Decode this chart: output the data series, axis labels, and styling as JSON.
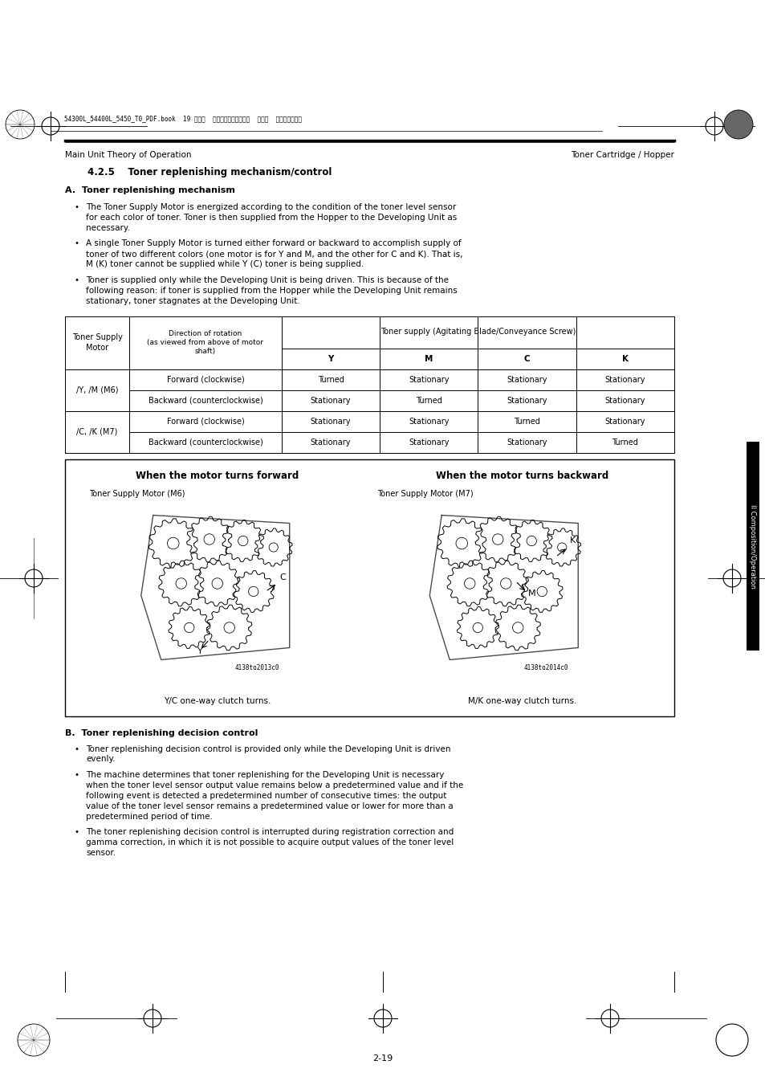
{
  "bg_color": "#ffffff",
  "page_width": 9.54,
  "page_height": 13.51,
  "header_left": "Main Unit Theory of Operation",
  "header_right": "Toner Cartridge / Hopper",
  "section_title": "4.2.5    Toner replenishing mechanism/control",
  "sub_title_A": "A.  Toner replenishing mechanism",
  "bullets_A": [
    "The Toner Supply Motor is energized according to the condition of the toner level sensor\nfor each color of toner. Toner is then supplied from the Hopper to the Developing Unit as\nnecessary.",
    "A single Toner Supply Motor is turned either forward or backward to accomplish supply of\ntoner of two different colors (one motor is for Y and M, and the other for C and K). That is,\nM (K) toner cannot be supplied while Y (C) toner is being supplied.",
    "Toner is supplied only while the Developing Unit is being driven. This is because of the\nfollowing reason: if toner is supplied from the Hopper while the Developing Unit remains\nstationary, toner stagnates at the Developing Unit."
  ],
  "table_col_header_span": "Toner supply (Agitating Blade/Conveyance Screw)",
  "table_col0_header": "Toner Supply\nMotor",
  "table_col1_header": "Direction of rotation\n(as viewed from above of motor\nshaft)",
  "table_ycmk": [
    "Y",
    "M",
    "C",
    "K"
  ],
  "table_rows": [
    [
      "/Y, /M (M6)",
      "Forward (clockwise)",
      "Turned",
      "Stationary",
      "Stationary",
      "Stationary"
    ],
    [
      "/Y, /M (M6)",
      "Backward (counterclockwise)",
      "Stationary",
      "Turned",
      "Stationary",
      "Stationary"
    ],
    [
      "/C, /K (M7)",
      "Forward (clockwise)",
      "Stationary",
      "Stationary",
      "Turned",
      "Stationary"
    ],
    [
      "/C, /K (M7)",
      "Backward (counterclockwise)",
      "Stationary",
      "Stationary",
      "Stationary",
      "Turned"
    ]
  ],
  "diagram_title_left": "When the motor turns forward",
  "diagram_title_right": "When the motor turns backward",
  "diagram_label_left_top": "Toner Supply Motor (M6)",
  "diagram_label_right_top": "Toner Supply Motor (M7)",
  "diagram_label_left_bottom": "Y/C one-way clutch turns.",
  "diagram_label_right_bottom": "M/K one-way clutch turns.",
  "diagram_code_left": "4138to2013c0",
  "diagram_code_right": "4138to2014c0",
  "sub_title_B": "B.  Toner replenishing decision control",
  "bullets_B": [
    "Toner replenishing decision control is provided only while the Developing Unit is driven\nevenly.",
    "The machine determines that toner replenishing for the Developing Unit is necessary\nwhen the toner level sensor output value remains below a predetermined value and if the\nfollowing event is detected a predetermined number of consecutive times: the output\nvalue of the toner level sensor remains a predetermined value or lower for more than a\npredetermined period of time.",
    "The toner replenishing decision control is interrupted during registration correction and\ngamma correction, in which it is not possible to acquire output values of the toner level\nsensor."
  ],
  "footer_text": "2-19",
  "file_info": "54300L_54400L_5450_T0_PDF.book  19 ページ  ２００５年４月１２日  火曜日  午後４時４９分",
  "sidebar_text": "II Composition/Operation",
  "font_size_body": 7.5,
  "font_size_header": 7.5,
  "font_size_section": 8.5,
  "font_size_sub": 8.0,
  "font_size_footer": 8.0,
  "font_size_table": 7.0
}
